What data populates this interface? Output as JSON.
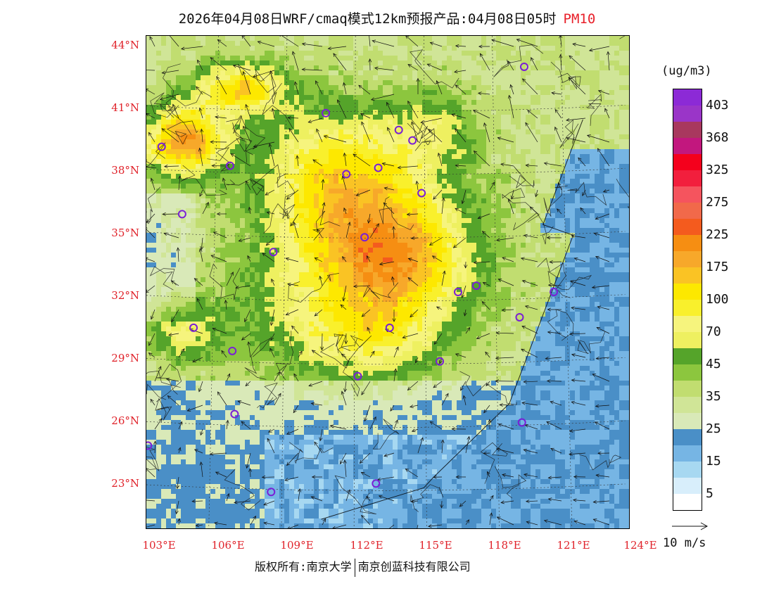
{
  "title": {
    "main": "2026年04月08日WRF/cmaq模式12km预报产品:04月08日05时",
    "pollutant": "PM10"
  },
  "axes": {
    "latitudes": [
      "44°N",
      "41°N",
      "38°N",
      "35°N",
      "32°N",
      "29°N",
      "26°N",
      "23°N"
    ],
    "longitudes": [
      "103°E",
      "106°E",
      "109°E",
      "112°E",
      "115°E",
      "118°E",
      "121°E",
      "124°E"
    ]
  },
  "legend": {
    "unit": "(ug/m3)",
    "levels": [
      {
        "label": "403",
        "color": "#8c2ad6"
      },
      {
        "label": "",
        "color": "#9a35c8"
      },
      {
        "label": "368",
        "color": "#a8385e"
      },
      {
        "label": "",
        "color": "#c2177e"
      },
      {
        "label": "325",
        "color": "#f4001c"
      },
      {
        "label": "",
        "color": "#f21f3d"
      },
      {
        "label": "275",
        "color": "#f5545e"
      },
      {
        "label": "",
        "color": "#f1694a"
      },
      {
        "label": "225",
        "color": "#f45b1e"
      },
      {
        "label": "",
        "color": "#f68e12"
      },
      {
        "label": "175",
        "color": "#f7a82a"
      },
      {
        "label": "",
        "color": "#fac324"
      },
      {
        "label": "100",
        "color": "#fde800"
      },
      {
        "label": "",
        "color": "#f9f02c"
      },
      {
        "label": "70",
        "color": "#f6f47d"
      },
      {
        "label": "",
        "color": "#eef060"
      },
      {
        "label": "45",
        "color": "#55a42a"
      },
      {
        "label": "",
        "color": "#8cc63e"
      },
      {
        "label": "35",
        "color": "#c1dd70"
      },
      {
        "label": "",
        "color": "#d0e597"
      },
      {
        "label": "25",
        "color": "#d9e9b8"
      },
      {
        "label": "",
        "color": "#4a8fc7"
      },
      {
        "label": "15",
        "color": "#76b5e4"
      },
      {
        "label": "",
        "color": "#a7d8f1"
      },
      {
        "label": "5",
        "color": "#d8eefb"
      },
      {
        "label": "",
        "color": "#ffffff"
      }
    ]
  },
  "wind_scale": {
    "label": "10 m/s"
  },
  "footer": {
    "copyright": "版权所有:南京大学",
    "company": "南京创蓝科技有限公司"
  },
  "stations": [
    {
      "lon": 103.5,
      "lat": 39.2
    },
    {
      "lon": 106.5,
      "lat": 38.3
    },
    {
      "lon": 110.7,
      "lat": 40.8
    },
    {
      "lon": 113.9,
      "lat": 40.0
    },
    {
      "lon": 114.5,
      "lat": 39.5
    },
    {
      "lon": 111.6,
      "lat": 37.9
    },
    {
      "lon": 113.0,
      "lat": 38.2
    },
    {
      "lon": 114.9,
      "lat": 37.0
    },
    {
      "lon": 104.4,
      "lat": 36.0
    },
    {
      "lon": 112.4,
      "lat": 34.9
    },
    {
      "lon": 108.4,
      "lat": 34.2
    },
    {
      "lon": 117.3,
      "lat": 32.6
    },
    {
      "lon": 116.5,
      "lat": 32.3
    },
    {
      "lon": 120.7,
      "lat": 32.3
    },
    {
      "lon": 119.2,
      "lat": 31.1
    },
    {
      "lon": 104.9,
      "lat": 30.6
    },
    {
      "lon": 113.5,
      "lat": 30.6
    },
    {
      "lon": 106.6,
      "lat": 29.5
    },
    {
      "lon": 115.7,
      "lat": 29.0
    },
    {
      "lon": 112.1,
      "lat": 28.3
    },
    {
      "lon": 106.7,
      "lat": 26.5
    },
    {
      "lon": 119.3,
      "lat": 26.1
    },
    {
      "lon": 102.9,
      "lat": 25.0
    },
    {
      "lon": 112.9,
      "lat": 23.2
    },
    {
      "lon": 108.3,
      "lat": 22.8
    },
    {
      "lon": 119.4,
      "lat": 43.0
    }
  ]
}
